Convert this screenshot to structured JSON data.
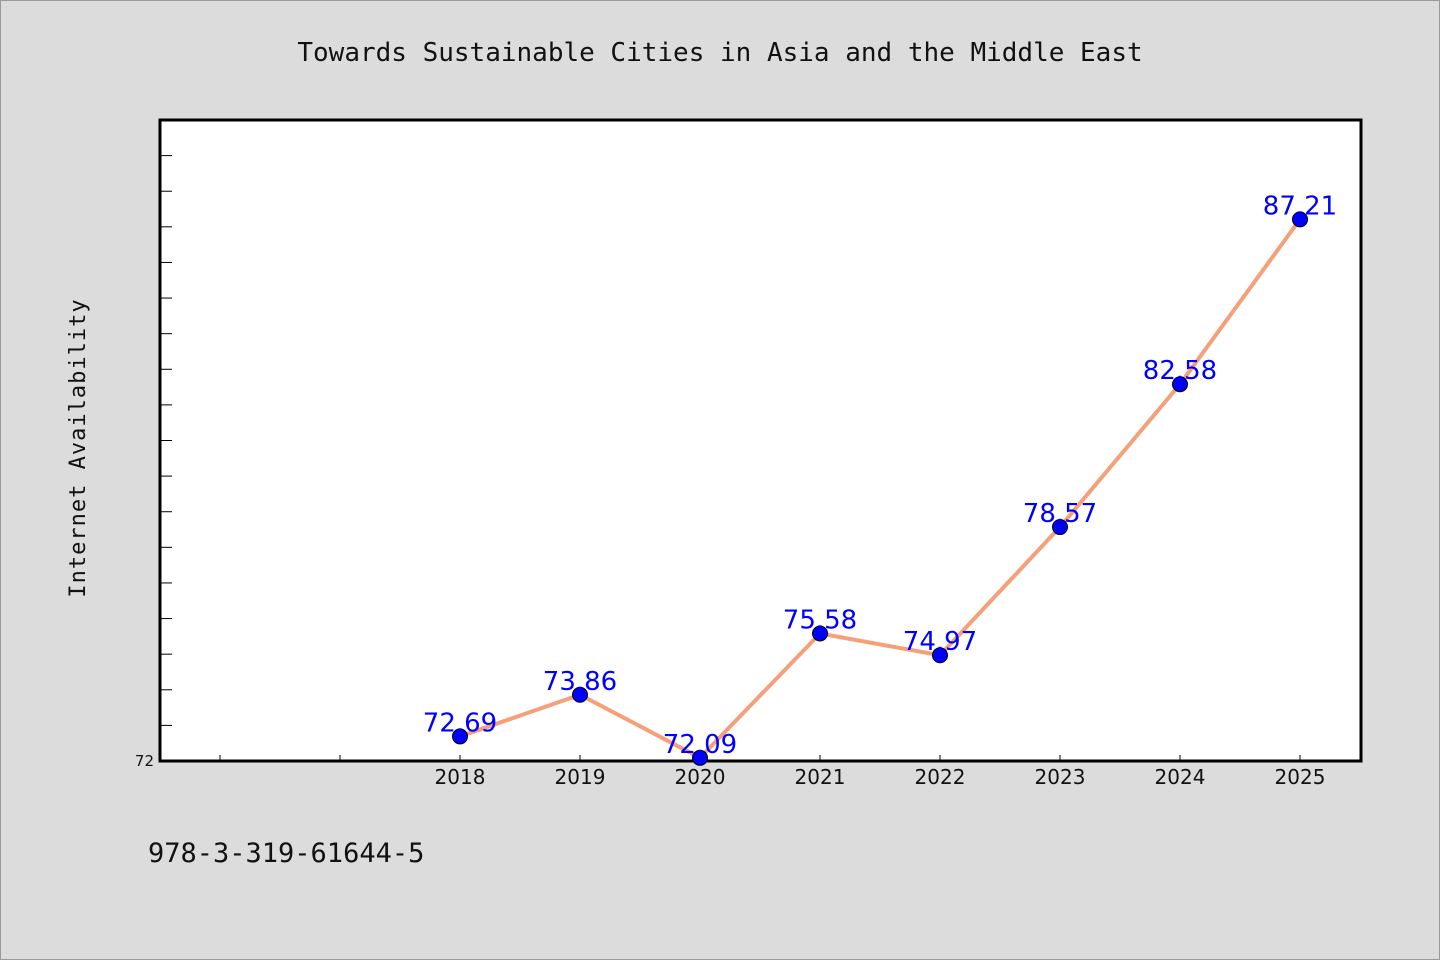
{
  "chart_data": {
    "type": "line",
    "title": "Towards Sustainable Cities in Asia and the Middle East",
    "ylabel": "Internet Availability",
    "xlabel": "",
    "x": [
      "2018",
      "2019",
      "2020",
      "2021",
      "2022",
      "2023",
      "2024",
      "2025"
    ],
    "series": [
      {
        "values": [
          72.69,
          73.86,
          72.09,
          75.58,
          74.97,
          78.57,
          82.58,
          87.21
        ],
        "data_labels": [
          "72.69",
          "73.86",
          "72.09",
          "75.58",
          "74.97",
          "78.57",
          "82.58",
          "87.21"
        ]
      }
    ],
    "ylim": [
      72,
      90
    ],
    "yticks_labeled": [
      "72"
    ],
    "grid": false,
    "line_color": "#f5a07a",
    "marker_color": "#0000ff",
    "label_color": "#0000ff"
  },
  "footer": {
    "isbn": "978-3-319-61644-5"
  }
}
